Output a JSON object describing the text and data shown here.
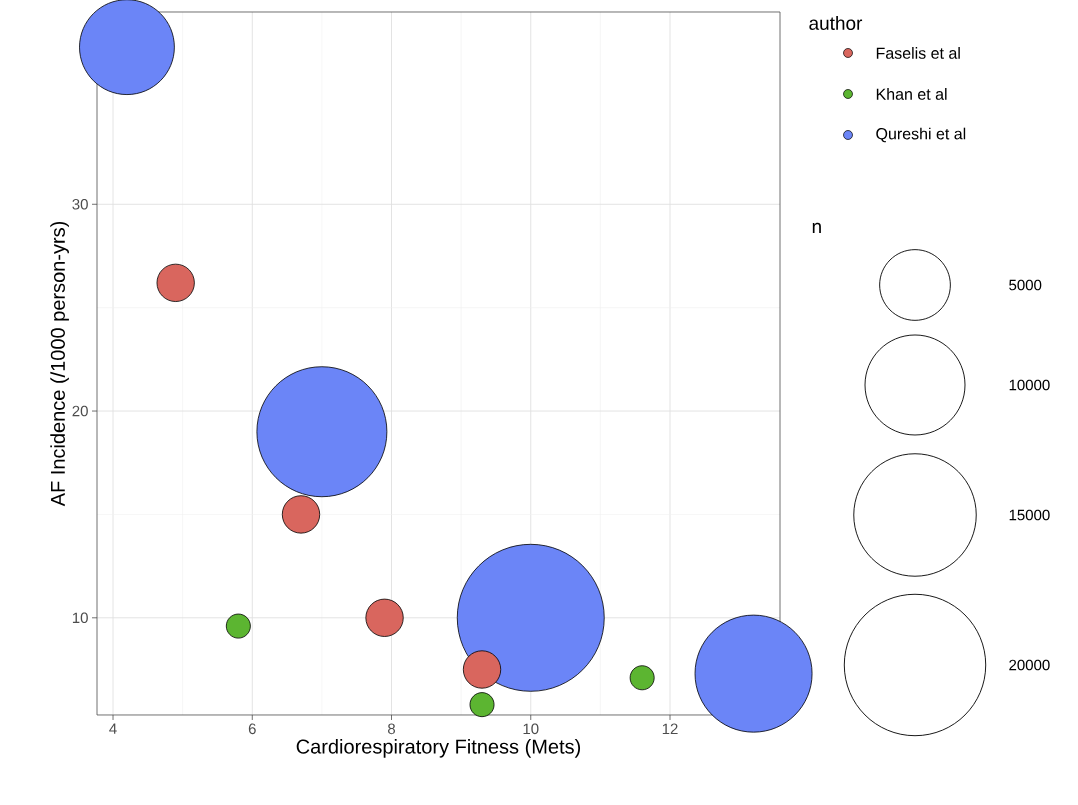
{
  "chart_data": {
    "type": "bubble",
    "xlabel": "Cardiorespiratory Fitness (Mets)",
    "ylabel": "AF Incidence (/1000 person-yrs)",
    "legend_title": "author",
    "annotations": [
      "n"
    ],
    "xlim": [
      3.77,
      13.58
    ],
    "ylim": [
      5.3,
      39.3
    ],
    "xticks": [
      4,
      6,
      8,
      10,
      12
    ],
    "yticks": [
      10,
      20,
      30
    ],
    "grid": true,
    "legend": "right",
    "size_legend": [
      5000,
      10000,
      15000,
      20000
    ],
    "series": [
      {
        "name": "Faselis et al",
        "color": "#d9665e",
        "x": [
          4.9,
          6.7,
          7.9,
          9.3
        ],
        "values": [
          26.2,
          15.0,
          10.0,
          7.5
        ],
        "sizes": [
          1400,
          1400,
          1400,
          1400
        ]
      },
      {
        "name": "Khan et al",
        "color": "#5cb531",
        "x": [
          5.8,
          9.3,
          11.6
        ],
        "values": [
          9.6,
          5.8,
          7.1
        ],
        "sizes": [
          580,
          580,
          580
        ]
      },
      {
        "name": "Qureshi et al",
        "color": "#6b85f7",
        "x": [
          4.2,
          7.0,
          10.0,
          13.2
        ],
        "values": [
          37.6,
          19.0,
          10.0,
          7.3
        ],
        "sizes": [
          9000,
          16900,
          21600,
          13700
        ]
      }
    ]
  }
}
